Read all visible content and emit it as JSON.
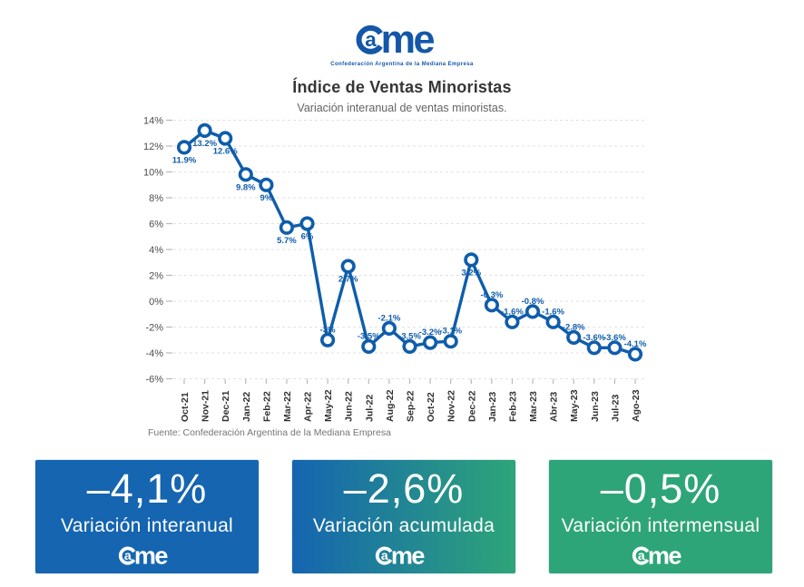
{
  "brand": {
    "wordmark_a": "a",
    "wordmark_me": "me",
    "tagline": "Confederación Argentina de la Mediana Empresa"
  },
  "chart_data": {
    "type": "line",
    "title": "Índice de Ventas Minoristas",
    "subtitle": "Variación interanual de ventas minoristas.",
    "categories": [
      "Oct-21",
      "Nov-21",
      "Dec-21",
      "Jan-22",
      "Feb-22",
      "Mar-22",
      "Apr-22",
      "May-22",
      "Jun-22",
      "Jul-22",
      "Aug-22",
      "Sep-22",
      "Oct-22",
      "Nov-22",
      "Dec-22",
      "Jan-23",
      "Feb-23",
      "Mar-23",
      "Abr-23",
      "May-23",
      "Jun-23",
      "Jul-23",
      "Ago-23"
    ],
    "values": [
      11.9,
      13.2,
      12.6,
      9.8,
      9,
      5.7,
      6,
      -3,
      2.7,
      -3.5,
      -2.1,
      -3.5,
      -3.2,
      -3.1,
      3.2,
      -0.3,
      -1.6,
      -0.8,
      -1.6,
      -2.8,
      -3.6,
      -3.6,
      -4.1
    ],
    "point_labels": [
      "11.9%",
      "13.2%",
      "12.6%",
      "9.8%",
      "9%",
      "5.7%",
      "6%",
      "-3%",
      "2.7%",
      "-3.5%",
      "-2.1%",
      "-3.5%",
      "-3.2%",
      "-3.1%",
      "3.2%",
      "-0.3%",
      "-1.6%",
      "-0.8%",
      "-1.6%",
      "-2.8%",
      "-3.6%",
      "-3.6%",
      "-4.1%"
    ],
    "ylim": [
      -6,
      14
    ],
    "ytick_step": 2,
    "ytick_labels": [
      "14%",
      "12%",
      "10%",
      "8%",
      "6%",
      "4%",
      "2%",
      "0%",
      "-2%",
      "-4%",
      "-6%"
    ],
    "grid": true,
    "legend": false,
    "marker": "open-circle",
    "source": "Fuente: Confederación Argentina de la Mediana Empresa"
  },
  "cards": [
    {
      "value": "–4,1%",
      "label": "Variación interanual"
    },
    {
      "value": "–2,6%",
      "label": "Variación acumulada"
    },
    {
      "value": "–0,5%",
      "label": "Variación intermensual"
    }
  ],
  "colors": {
    "line_blue": "#0f5dab",
    "logo_blue": "#1457a8",
    "card_blue": "#1565b0",
    "card_green": "#2ea578",
    "grid_gray": "#e2e2e2",
    "tick_gray": "#b9b9b9",
    "ylabel_gray": "#4d4d4d",
    "xlabel_dark": "#2f2f2f"
  }
}
